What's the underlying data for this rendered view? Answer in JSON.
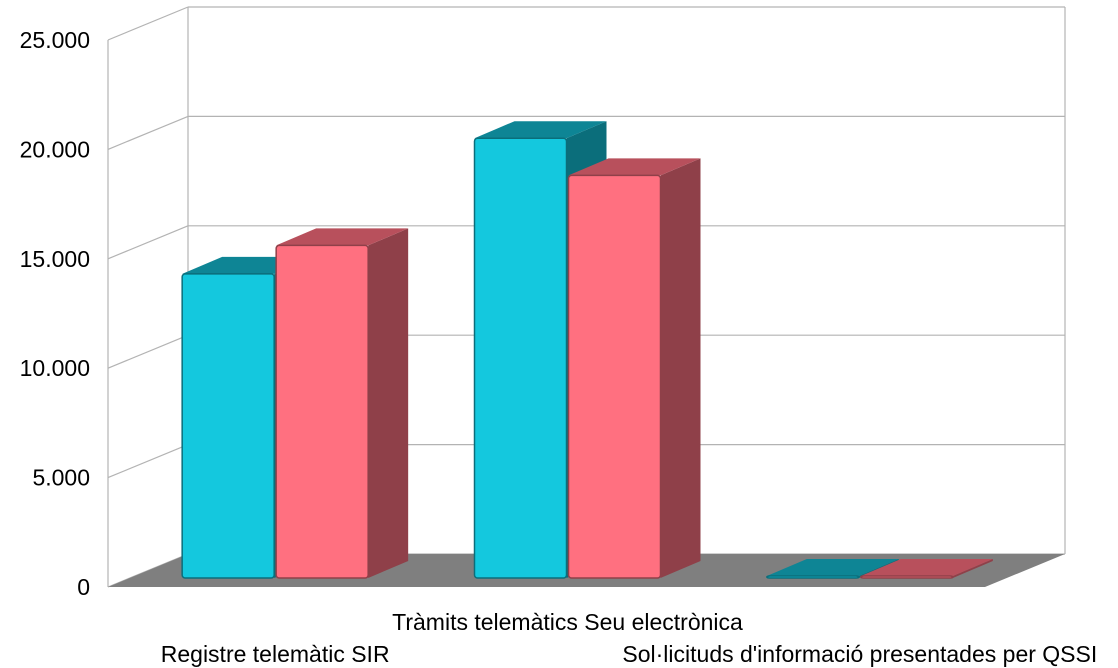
{
  "chart_data": {
    "type": "bar",
    "style": "3d",
    "categories": [
      "Registre telemàtic SIR",
      "Tràmits telemàtics Seu electrònica",
      "Sol·licituds d'informació presentades per QSSI"
    ],
    "series": [
      {
        "values": [
          13900,
          20100,
          50
        ],
        "color": "#14c8de"
      },
      {
        "values": [
          15200,
          18400,
          50
        ],
        "color": "#ff7080"
      }
    ],
    "ylim": [
      0,
      25000
    ],
    "yticks": [
      "0",
      "5.000",
      "10.000",
      "15.000",
      "20.000",
      "25.000"
    ],
    "grid": true,
    "legend": "none",
    "title": "",
    "xlabel": "",
    "ylabel": "",
    "colors": {
      "floor": "#7f7f7f",
      "gridline": "#b3b3b3",
      "series1_top": "#0e8595",
      "series1_side": "#0b6e7b",
      "series2_top": "#b8505c",
      "series2_side": "#8f4049"
    }
  }
}
